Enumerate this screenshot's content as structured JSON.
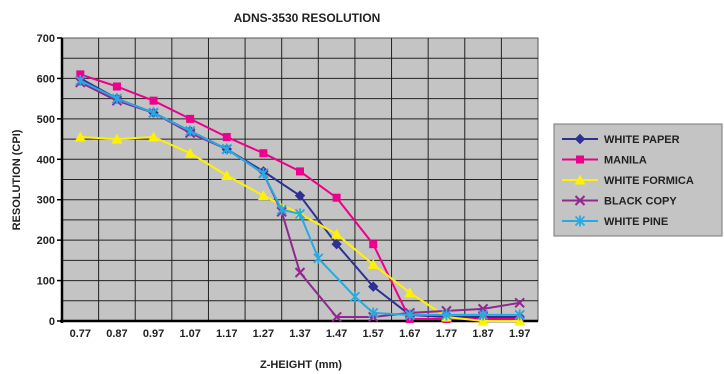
{
  "chart_data": {
    "type": "line",
    "title": "ADNS-3530 RESOLUTION",
    "xlabel": "Z-HEIGHT (mm)",
    "ylabel": "RESOLUTION (CPI)",
    "x_ticks": [
      "0.77",
      "0.87",
      "0.97",
      "1.07",
      "1.17",
      "1.27",
      "1.37",
      "1.47",
      "1.57",
      "1.67",
      "1.77",
      "1.87",
      "1.97"
    ],
    "y_ticks": [
      "0",
      "100",
      "200",
      "300",
      "400",
      "500",
      "600",
      "700"
    ],
    "xlim": [
      0.77,
      1.97
    ],
    "ylim": [
      0,
      700
    ],
    "grid": true,
    "legend_position": "right",
    "plot_background": "#c4c4c4",
    "series": [
      {
        "name": "WHITE PAPER",
        "color": "#2e3192",
        "marker": "diamond",
        "points": [
          [
            0.77,
            600
          ],
          [
            0.87,
            550
          ],
          [
            0.97,
            515
          ],
          [
            1.07,
            470
          ],
          [
            1.17,
            425
          ],
          [
            1.27,
            370
          ],
          [
            1.37,
            310
          ],
          [
            1.47,
            190
          ],
          [
            1.57,
            85
          ],
          [
            1.67,
            15
          ],
          [
            1.77,
            10
          ],
          [
            1.87,
            10
          ],
          [
            1.97,
            10
          ]
        ]
      },
      {
        "name": "MANILA",
        "color": "#ec008c",
        "marker": "square",
        "points": [
          [
            0.77,
            610
          ],
          [
            0.87,
            580
          ],
          [
            0.97,
            545
          ],
          [
            1.07,
            500
          ],
          [
            1.17,
            455
          ],
          [
            1.27,
            415
          ],
          [
            1.37,
            370
          ],
          [
            1.47,
            305
          ],
          [
            1.57,
            190
          ],
          [
            1.67,
            5
          ],
          [
            1.77,
            5
          ],
          [
            1.87,
            5
          ],
          [
            1.97,
            5
          ]
        ]
      },
      {
        "name": "WHITE FORMICA",
        "color": "#fff200",
        "marker": "triangle",
        "points": [
          [
            0.77,
            455
          ],
          [
            0.87,
            450
          ],
          [
            0.97,
            455
          ],
          [
            1.07,
            415
          ],
          [
            1.17,
            360
          ],
          [
            1.27,
            310
          ],
          [
            1.37,
            265
          ],
          [
            1.47,
            215
          ],
          [
            1.57,
            140
          ],
          [
            1.67,
            70
          ],
          [
            1.77,
            10
          ],
          [
            1.87,
            0
          ],
          [
            1.97,
            0
          ]
        ]
      },
      {
        "name": "BLACK COPY",
        "color": "#92278f",
        "marker": "x",
        "points": [
          [
            0.77,
            590
          ],
          [
            0.87,
            545
          ],
          [
            0.97,
            515
          ],
          [
            1.07,
            465
          ],
          [
            1.17,
            425
          ],
          [
            1.27,
            365
          ],
          [
            1.32,
            270
          ],
          [
            1.37,
            120
          ],
          [
            1.47,
            10
          ],
          [
            1.57,
            10
          ],
          [
            1.67,
            20
          ],
          [
            1.77,
            25
          ],
          [
            1.87,
            30
          ],
          [
            1.97,
            45
          ]
        ]
      },
      {
        "name": "WHITE PINE",
        "color": "#27aae1",
        "marker": "star",
        "points": [
          [
            0.77,
            595
          ],
          [
            0.87,
            550
          ],
          [
            0.97,
            515
          ],
          [
            1.07,
            470
          ],
          [
            1.17,
            425
          ],
          [
            1.27,
            365
          ],
          [
            1.32,
            275
          ],
          [
            1.37,
            265
          ],
          [
            1.42,
            155
          ],
          [
            1.52,
            60
          ],
          [
            1.57,
            20
          ],
          [
            1.67,
            15
          ],
          [
            1.77,
            15
          ],
          [
            1.87,
            15
          ],
          [
            1.97,
            15
          ]
        ]
      }
    ]
  }
}
